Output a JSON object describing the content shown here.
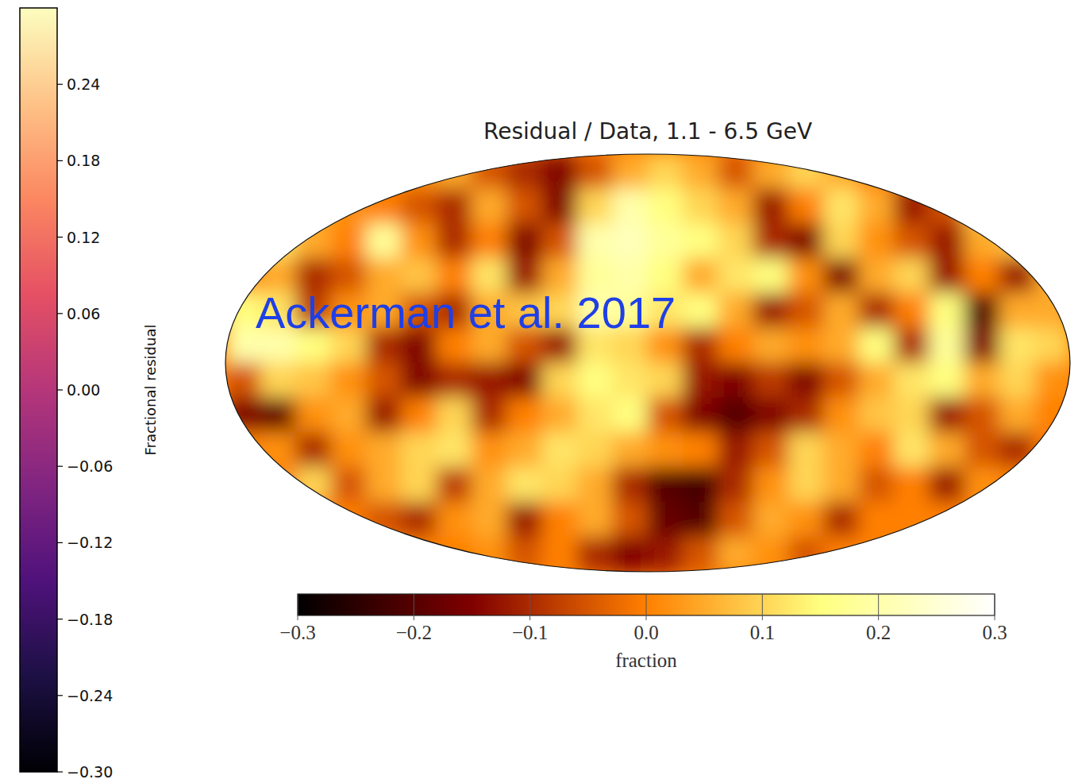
{
  "chart_data": [
    {
      "type": "heatmap",
      "title": "Residual / Data, 1.1 - 6.5 GeV",
      "annotation": "Ackerman et al. 2017",
      "color_label": "fraction",
      "color_range": [
        -0.3,
        0.3
      ],
      "color_ticks": [
        {
          "value": -0.3,
          "label": "−0.3"
        },
        {
          "value": -0.2,
          "label": "−0.2"
        },
        {
          "value": -0.1,
          "label": "−0.1"
        },
        {
          "value": 0,
          "label": "0.0"
        },
        0.1,
        0.2,
        0.3
      ],
      "cells": [
        [
          0,
          0,
          0,
          0,
          0,
          0.02,
          0.05,
          -0.05,
          -0.1,
          -0.15,
          -0.05,
          0.05,
          0.1,
          0.05,
          -0.05,
          0.05,
          0.1,
          0.05,
          0,
          -0.05,
          0,
          0,
          0,
          0
        ],
        [
          0,
          0.05,
          0.05,
          0.02,
          0,
          -0.05,
          -0.1,
          0.05,
          -0.05,
          -0.15,
          0.1,
          0.2,
          0.15,
          0.1,
          0.05,
          -0.12,
          0,
          0.12,
          0.05,
          -0.12,
          -0.05,
          0.1,
          0.05,
          0
        ],
        [
          0.05,
          0.12,
          0.05,
          0,
          0.18,
          0.02,
          -0.1,
          0,
          -0.15,
          -0.05,
          0.2,
          0.22,
          0.18,
          0.15,
          0.1,
          -0.1,
          -0.15,
          0.1,
          0.02,
          -0.05,
          -0.12,
          0.05,
          0.08,
          0.02
        ],
        [
          0.02,
          0.05,
          -0.1,
          -0.05,
          0.05,
          0.08,
          0,
          0.12,
          -0.12,
          0.05,
          0.18,
          0.2,
          0.15,
          0.05,
          0.12,
          0.15,
          0.02,
          -0.15,
          0.05,
          0.1,
          -0.12,
          0,
          -0.12,
          0.05
        ],
        [
          0.15,
          0.12,
          -0.08,
          0.02,
          0.05,
          -0.05,
          -0.1,
          0.05,
          0.08,
          0.1,
          0.2,
          0.18,
          0.12,
          0.15,
          0.05,
          -0.12,
          -0.05,
          0.05,
          -0.1,
          0,
          0.15,
          -0.2,
          0.05,
          0.05
        ],
        [
          0.2,
          0.2,
          0.15,
          0.1,
          -0.1,
          -0.15,
          0,
          0.05,
          -0.05,
          -0.12,
          0.12,
          0.1,
          0.02,
          -0.1,
          0,
          0.05,
          0.02,
          0.05,
          0.15,
          -0.1,
          0.18,
          -0.15,
          0.12,
          0.1
        ],
        [
          -0.05,
          0.1,
          0.08,
          0.02,
          -0.05,
          -0.15,
          -0.1,
          -0.12,
          -0.15,
          0.1,
          0.15,
          0.12,
          0.1,
          -0.12,
          -0.15,
          -0.08,
          -0.15,
          -0.05,
          0.05,
          0.12,
          0.15,
          0.05,
          0.1,
          0.02
        ],
        [
          -0.15,
          -0.18,
          0.02,
          0.05,
          -0.12,
          0,
          0.1,
          -0.1,
          0,
          0.05,
          0.12,
          0.15,
          -0.05,
          -0.15,
          -0.2,
          -0.15,
          -0.1,
          0.02,
          0.08,
          0.1,
          -0.12,
          -0.05,
          0.05,
          0
        ],
        [
          0,
          0.02,
          -0.1,
          0.02,
          0.05,
          0.1,
          0.12,
          0.02,
          0.05,
          0.12,
          0.1,
          0.05,
          0.02,
          0,
          -0.12,
          -0.05,
          0.1,
          0.05,
          0,
          0.12,
          0.05,
          -0.05,
          -0.1,
          0
        ],
        [
          0,
          0,
          0.1,
          -0.05,
          0.05,
          0.1,
          -0.08,
          0.05,
          0.12,
          0.1,
          0.05,
          -0.1,
          -0.2,
          -0.22,
          -0.1,
          0.02,
          0.1,
          0.05,
          -0.05,
          0,
          -0.12,
          0.02,
          0,
          0
        ],
        [
          0,
          0,
          0,
          0,
          -0.05,
          -0.1,
          0.02,
          0.05,
          -0.12,
          0,
          0.05,
          -0.05,
          -0.18,
          -0.2,
          -0.05,
          0.05,
          0.02,
          -0.1,
          0,
          0,
          0,
          0,
          0,
          0
        ],
        [
          0,
          0,
          0,
          0,
          0,
          0,
          0,
          0.02,
          -0.05,
          0,
          -0.1,
          -0.15,
          -0.12,
          -0.05,
          0.05,
          0.02,
          -0.05,
          0,
          0,
          0,
          0,
          0,
          0,
          0
        ]
      ]
    },
    {
      "type": "colorbar",
      "ylabel": "Fractional residual",
      "ylim": [
        -0.3,
        0.3
      ],
      "yticks": [
        0.24,
        0.18,
        0.12,
        0.06,
        {
          "value": 0,
          "label": "0.00"
        },
        {
          "value": -0.06,
          "label": "−0.06"
        },
        {
          "value": -0.12,
          "label": "−0.12"
        },
        {
          "value": -0.18,
          "label": "−0.18"
        },
        {
          "value": -0.24,
          "label": "−0.24"
        },
        {
          "value": -0.3,
          "label": "−0.30"
        }
      ]
    }
  ]
}
